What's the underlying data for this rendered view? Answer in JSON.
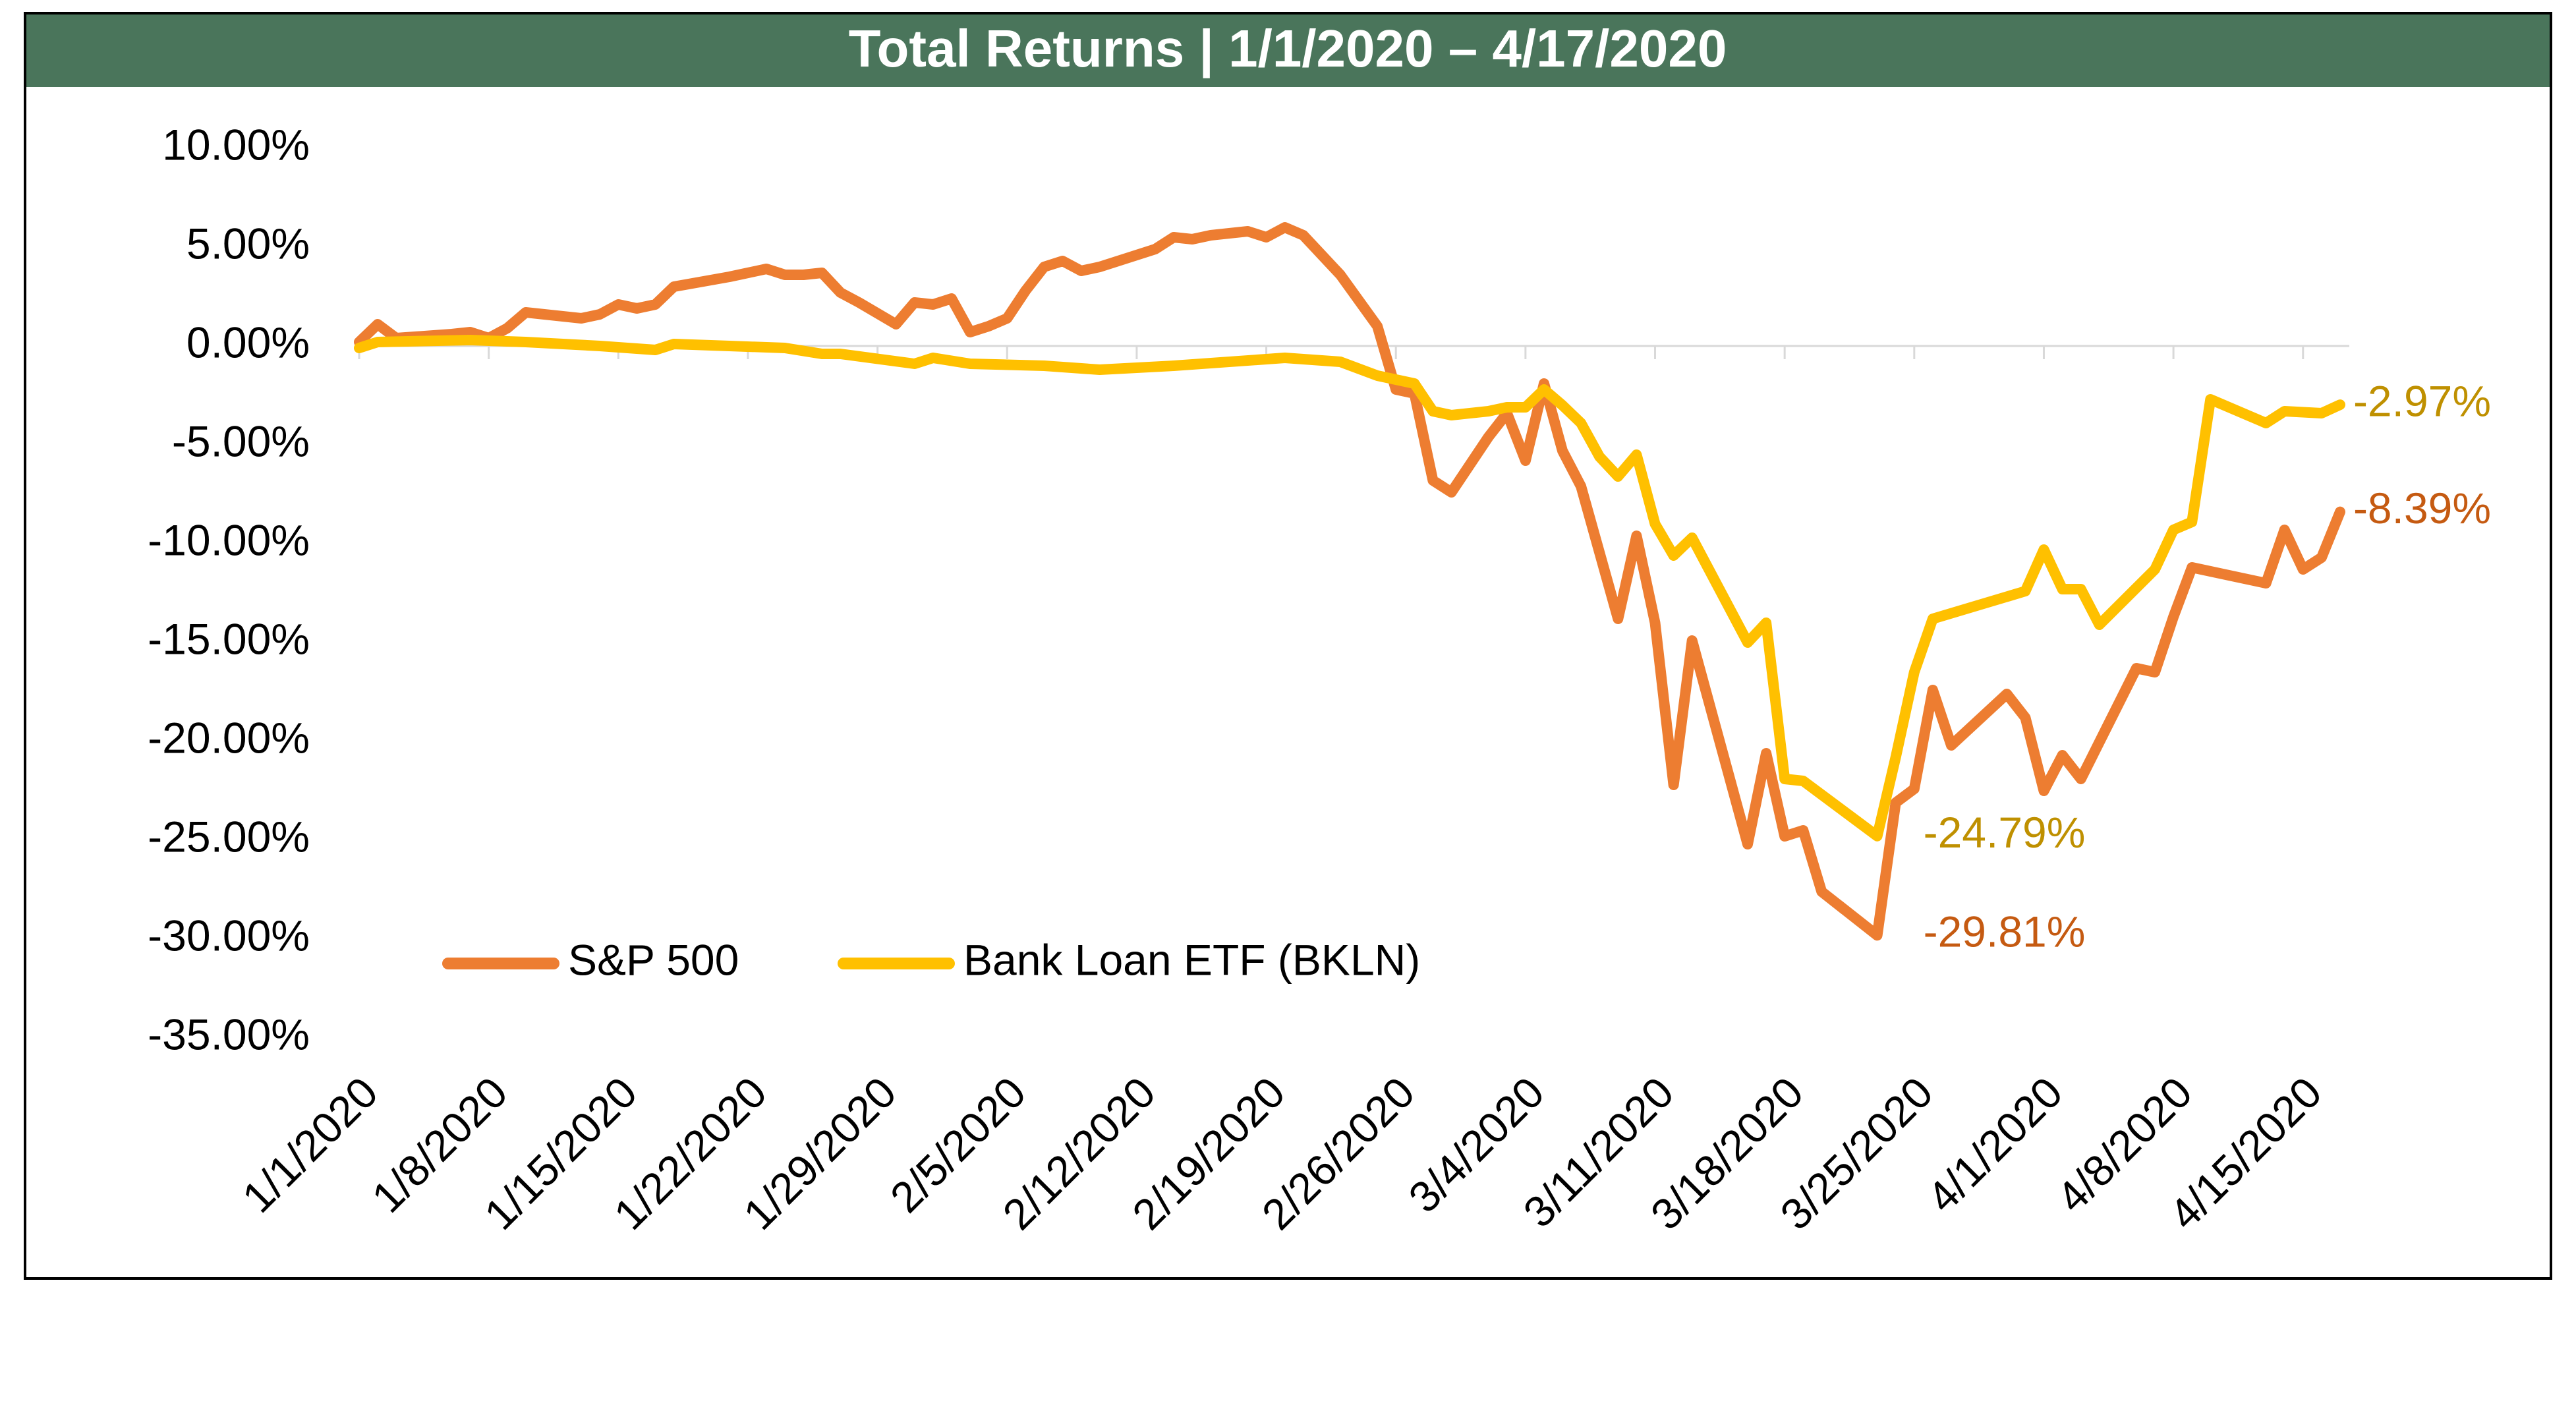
{
  "title": "Total Returns | 1/1/2020 – 4/17/2020",
  "colors": {
    "header_bg": "#4A755B",
    "sp500": "#ED7D31",
    "bkln": "#FFC000",
    "sp500_label": "#C55A11",
    "bkln_label": "#BF9000",
    "axis": "#D9D9D9"
  },
  "chart_data": {
    "type": "line",
    "title": "Total Returns | 1/1/2020 – 4/17/2020",
    "xlabel": "",
    "ylabel": "",
    "ylim": [
      -35,
      10
    ],
    "yticks": [
      10,
      5,
      0,
      -5,
      -10,
      -15,
      -20,
      -25,
      -30,
      -35
    ],
    "ytick_labels": [
      "10.00%",
      "5.00%",
      "0.00%",
      "-5.00%",
      "-10.00%",
      "-15.00%",
      "-20.00%",
      "-25.00%",
      "-30.00%",
      "-35.00%"
    ],
    "xlim": [
      "2020-01-01",
      "2020-04-17"
    ],
    "xticks": [
      "2020-01-01",
      "2020-01-08",
      "2020-01-15",
      "2020-01-22",
      "2020-01-29",
      "2020-02-05",
      "2020-02-12",
      "2020-02-19",
      "2020-02-26",
      "2020-03-04",
      "2020-03-11",
      "2020-03-18",
      "2020-03-25",
      "2020-04-01",
      "2020-04-08",
      "2020-04-15"
    ],
    "xtick_labels": [
      "1/1/2020",
      "1/8/2020",
      "1/15/2020",
      "1/22/2020",
      "1/29/2020",
      "2/5/2020",
      "2/12/2020",
      "2/19/2020",
      "2/26/2020",
      "3/4/2020",
      "3/11/2020",
      "3/18/2020",
      "3/25/2020",
      "4/1/2020",
      "4/8/2020",
      "4/15/2020"
    ],
    "grid": false,
    "legend_position": "bottom-left",
    "series": [
      {
        "name": "S&P 500",
        "color": "#ED7D31",
        "points": [
          [
            "2020-01-01",
            0.2
          ],
          [
            "2020-01-02",
            1.1
          ],
          [
            "2020-01-03",
            0.4
          ],
          [
            "2020-01-06",
            0.6
          ],
          [
            "2020-01-07",
            0.7
          ],
          [
            "2020-01-08",
            0.4
          ],
          [
            "2020-01-09",
            0.9
          ],
          [
            "2020-01-10",
            1.7
          ],
          [
            "2020-01-13",
            1.4
          ],
          [
            "2020-01-14",
            1.6
          ],
          [
            "2020-01-15",
            2.1
          ],
          [
            "2020-01-16",
            1.9
          ],
          [
            "2020-01-17",
            2.1
          ],
          [
            "2020-01-18",
            3.0
          ],
          [
            "2020-01-21",
            3.5
          ],
          [
            "2020-01-22",
            3.7
          ],
          [
            "2020-01-23",
            3.9
          ],
          [
            "2020-01-24",
            3.6
          ],
          [
            "2020-01-25",
            3.6
          ],
          [
            "2020-01-26",
            3.7
          ],
          [
            "2020-01-27",
            2.7
          ],
          [
            "2020-01-28",
            2.2
          ],
          [
            "2020-01-30",
            1.1
          ],
          [
            "2020-01-31",
            2.2
          ],
          [
            "2020-02-01",
            2.1
          ],
          [
            "2020-02-02",
            2.4
          ],
          [
            "2020-02-03",
            0.7
          ],
          [
            "2020-02-04",
            1.0
          ],
          [
            "2020-02-05",
            1.4
          ],
          [
            "2020-02-06",
            2.8
          ],
          [
            "2020-02-07",
            4.0
          ],
          [
            "2020-02-08",
            4.3
          ],
          [
            "2020-02-09",
            3.8
          ],
          [
            "2020-02-10",
            4.0
          ],
          [
            "2020-02-11",
            4.3
          ],
          [
            "2020-02-12",
            4.6
          ],
          [
            "2020-02-13",
            4.9
          ],
          [
            "2020-02-14",
            5.5
          ],
          [
            "2020-02-15",
            5.4
          ],
          [
            "2020-02-16",
            5.6
          ],
          [
            "2020-02-18",
            5.8
          ],
          [
            "2020-02-19",
            5.5
          ],
          [
            "2020-02-20",
            6.0
          ],
          [
            "2020-02-21",
            5.6
          ],
          [
            "2020-02-22",
            4.6
          ],
          [
            "2020-02-23",
            3.6
          ],
          [
            "2020-02-24",
            2.3
          ],
          [
            "2020-02-25",
            1.0
          ],
          [
            "2020-02-26",
            -2.2
          ],
          [
            "2020-02-27",
            -2.4
          ],
          [
            "2020-02-28",
            -6.8
          ],
          [
            "2020-02-29",
            -7.4
          ],
          [
            "2020-03-02",
            -4.6
          ],
          [
            "2020-03-03",
            -3.4
          ],
          [
            "2020-03-04",
            -5.8
          ],
          [
            "2020-03-05",
            -1.9
          ],
          [
            "2020-03-06",
            -5.3
          ],
          [
            "2020-03-07",
            -7.1
          ],
          [
            "2020-03-09",
            -13.8
          ],
          [
            "2020-03-10",
            -9.6
          ],
          [
            "2020-03-11",
            -14.0
          ],
          [
            "2020-03-12",
            -22.2
          ],
          [
            "2020-03-13",
            -14.9
          ],
          [
            "2020-03-16",
            -25.2
          ],
          [
            "2020-03-17",
            -20.6
          ],
          [
            "2020-03-18",
            -24.8
          ],
          [
            "2020-03-19",
            -24.5
          ],
          [
            "2020-03-20",
            -27.6
          ],
          [
            "2020-03-23",
            -29.81
          ],
          [
            "2020-03-24",
            -23.1
          ],
          [
            "2020-03-25",
            -22.4
          ],
          [
            "2020-03-26",
            -17.4
          ],
          [
            "2020-03-27",
            -20.2
          ],
          [
            "2020-03-30",
            -17.6
          ],
          [
            "2020-03-31",
            -18.8
          ],
          [
            "2020-04-01",
            -22.5
          ],
          [
            "2020-04-02",
            -20.7
          ],
          [
            "2020-04-03",
            -21.9
          ],
          [
            "2020-04-06",
            -16.3
          ],
          [
            "2020-04-07",
            -16.5
          ],
          [
            "2020-04-08",
            -13.7
          ],
          [
            "2020-04-09",
            -11.2
          ],
          [
            "2020-04-13",
            -12.0
          ],
          [
            "2020-04-14",
            -9.3
          ],
          [
            "2020-04-15",
            -11.3
          ],
          [
            "2020-04-16",
            -10.7
          ],
          [
            "2020-04-17",
            -8.39
          ]
        ]
      },
      {
        "name": "Bank Loan ETF (BKLN)",
        "color": "#FFC000",
        "points": [
          [
            "2020-01-01",
            -0.1
          ],
          [
            "2020-01-02",
            0.2
          ],
          [
            "2020-01-07",
            0.3
          ],
          [
            "2020-01-10",
            0.2
          ],
          [
            "2020-01-14",
            0.0
          ],
          [
            "2020-01-17",
            -0.2
          ],
          [
            "2020-01-18",
            0.1
          ],
          [
            "2020-01-21",
            0.0
          ],
          [
            "2020-01-24",
            -0.1
          ],
          [
            "2020-01-26",
            -0.4
          ],
          [
            "2020-01-27",
            -0.4
          ],
          [
            "2020-01-31",
            -0.9
          ],
          [
            "2020-02-01",
            -0.6
          ],
          [
            "2020-02-03",
            -0.9
          ],
          [
            "2020-02-07",
            -1.0
          ],
          [
            "2020-02-10",
            -1.2
          ],
          [
            "2020-02-14",
            -1.0
          ],
          [
            "2020-02-20",
            -0.6
          ],
          [
            "2020-02-23",
            -0.8
          ],
          [
            "2020-02-25",
            -1.5
          ],
          [
            "2020-02-27",
            -1.9
          ],
          [
            "2020-02-28",
            -3.3
          ],
          [
            "2020-02-29",
            -3.5
          ],
          [
            "2020-03-02",
            -3.3
          ],
          [
            "2020-03-03",
            -3.1
          ],
          [
            "2020-03-04",
            -3.1
          ],
          [
            "2020-03-05",
            -2.2
          ],
          [
            "2020-03-06",
            -3.0
          ],
          [
            "2020-03-07",
            -3.9
          ],
          [
            "2020-03-08",
            -5.6
          ],
          [
            "2020-03-09",
            -6.6
          ],
          [
            "2020-03-10",
            -5.5
          ],
          [
            "2020-03-11",
            -9.0
          ],
          [
            "2020-03-12",
            -10.6
          ],
          [
            "2020-03-13",
            -9.7
          ],
          [
            "2020-03-16",
            -15.0
          ],
          [
            "2020-03-17",
            -14.0
          ],
          [
            "2020-03-18",
            -21.9
          ],
          [
            "2020-03-19",
            -22.0
          ],
          [
            "2020-03-23",
            -24.79
          ],
          [
            "2020-03-24",
            -20.8
          ],
          [
            "2020-03-25",
            -16.5
          ],
          [
            "2020-03-26",
            -13.8
          ],
          [
            "2020-03-31",
            -12.4
          ],
          [
            "2020-04-01",
            -10.3
          ],
          [
            "2020-04-02",
            -12.3
          ],
          [
            "2020-04-03",
            -12.3
          ],
          [
            "2020-04-04",
            -14.1
          ],
          [
            "2020-04-07",
            -11.3
          ],
          [
            "2020-04-08",
            -9.3
          ],
          [
            "2020-04-09",
            -8.9
          ],
          [
            "2020-04-10",
            -2.7
          ],
          [
            "2020-04-13",
            -3.9
          ],
          [
            "2020-04-14",
            -3.3
          ],
          [
            "2020-04-16",
            -3.4
          ],
          [
            "2020-04-17",
            -2.97
          ]
        ]
      }
    ],
    "annotations": [
      {
        "text": "-2.97%",
        "series": "Bank Loan ETF (BKLN)",
        "x": "2020-04-17",
        "y": -2.97,
        "color": "#BF9000"
      },
      {
        "text": "-8.39%",
        "series": "S&P 500",
        "x": "2020-04-17",
        "y": -8.39,
        "color": "#C55A11"
      },
      {
        "text": "-24.79%",
        "series": "Bank Loan ETF (BKLN)",
        "x": "2020-03-23",
        "y": -24.79,
        "color": "#BF9000"
      },
      {
        "text": "-29.81%",
        "series": "S&P 500",
        "x": "2020-03-23",
        "y": -29.81,
        "color": "#C55A11"
      }
    ],
    "legend": [
      "S&P 500",
      "Bank Loan ETF (BKLN)"
    ]
  }
}
